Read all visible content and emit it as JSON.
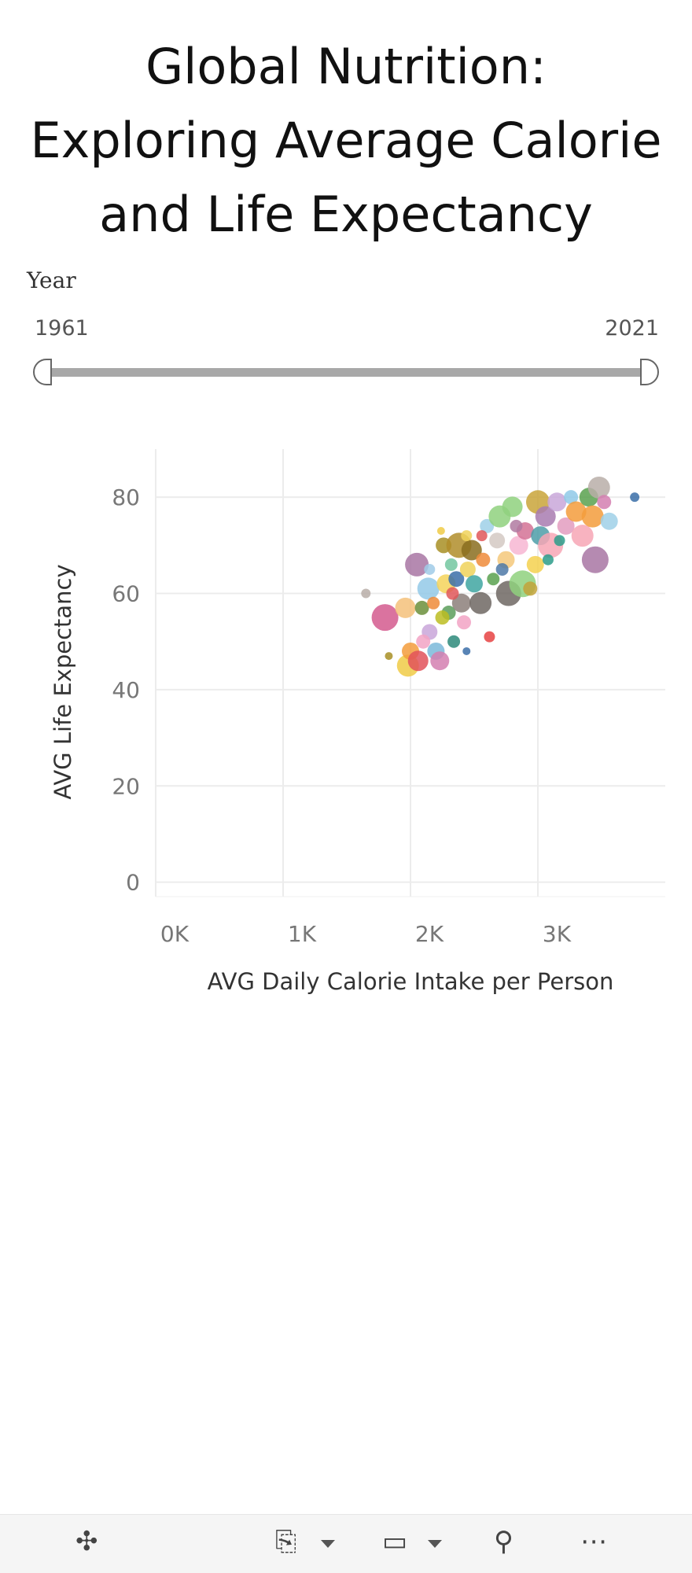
{
  "title_lines": [
    "Global Nutrition:",
    "Exploring Average Calorie",
    "and Life Expectancy"
  ],
  "filter": {
    "label": "Year",
    "min_value": "1961",
    "max_value": "2021",
    "selected_range": [
      1961,
      2021
    ]
  },
  "toolbar": {
    "icons": [
      "tableau-logo-icon",
      "download-icon",
      "device-layout-icon",
      "share-icon",
      "more-icon"
    ]
  },
  "chart_data": {
    "type": "scatter",
    "xlabel": "AVG Daily Calorie Intake per Person",
    "ylabel": "AVG Life Expectancy",
    "xlim": [
      0,
      4000
    ],
    "ylim": [
      -3,
      90
    ],
    "x_ticks": [
      {
        "value": 0,
        "label": "0K"
      },
      {
        "value": 1000,
        "label": "1K"
      },
      {
        "value": 2000,
        "label": "2K"
      },
      {
        "value": 3000,
        "label": "3K"
      }
    ],
    "y_ticks": [
      {
        "value": 0,
        "label": "0"
      },
      {
        "value": 20,
        "label": "20"
      },
      {
        "value": 40,
        "label": "40"
      },
      {
        "value": 60,
        "label": "60"
      },
      {
        "value": 80,
        "label": "80"
      }
    ],
    "grid": true,
    "points": [
      {
        "x": 1650,
        "y": 60,
        "size": 6,
        "color": "#b9aea8"
      },
      {
        "x": 1800,
        "y": 55,
        "size": 17,
        "color": "#d35a8e"
      },
      {
        "x": 1830,
        "y": 47,
        "size": 5,
        "color": "#a88f24"
      },
      {
        "x": 1960,
        "y": 57,
        "size": 13,
        "color": "#f5c17a"
      },
      {
        "x": 1980,
        "y": 45,
        "size": 14,
        "color": "#f0cb46"
      },
      {
        "x": 2000,
        "y": 48,
        "size": 11,
        "color": "#f39c3c"
      },
      {
        "x": 2060,
        "y": 46,
        "size": 13,
        "color": "#e2525b"
      },
      {
        "x": 2050,
        "y": 66,
        "size": 15,
        "color": "#a876a3"
      },
      {
        "x": 2090,
        "y": 57,
        "size": 9,
        "color": "#6b8f3b"
      },
      {
        "x": 2140,
        "y": 61,
        "size": 14,
        "color": "#93c9e8"
      },
      {
        "x": 2150,
        "y": 52,
        "size": 10,
        "color": "#c9a6d9"
      },
      {
        "x": 2200,
        "y": 48,
        "size": 11,
        "color": "#7ab8d9"
      },
      {
        "x": 2230,
        "y": 46,
        "size": 12,
        "color": "#d47fb0"
      },
      {
        "x": 2260,
        "y": 70,
        "size": 10,
        "color": "#a88f24"
      },
      {
        "x": 2280,
        "y": 62,
        "size": 12,
        "color": "#f5d45a"
      },
      {
        "x": 2300,
        "y": 56,
        "size": 9,
        "color": "#5a9d5a"
      },
      {
        "x": 2320,
        "y": 66,
        "size": 8,
        "color": "#73c7a0"
      },
      {
        "x": 2340,
        "y": 50,
        "size": 8,
        "color": "#2d8a7a"
      },
      {
        "x": 2360,
        "y": 63,
        "size": 10,
        "color": "#3b6ea8"
      },
      {
        "x": 2380,
        "y": 70,
        "size": 16,
        "color": "#b08d2a"
      },
      {
        "x": 2400,
        "y": 58,
        "size": 12,
        "color": "#8c7f7a"
      },
      {
        "x": 2420,
        "y": 54,
        "size": 9,
        "color": "#f2a3c4"
      },
      {
        "x": 2450,
        "y": 65,
        "size": 10,
        "color": "#f0d25a"
      },
      {
        "x": 2480,
        "y": 69,
        "size": 13,
        "color": "#8a6d1e"
      },
      {
        "x": 2500,
        "y": 62,
        "size": 11,
        "color": "#3fa6a1"
      },
      {
        "x": 2550,
        "y": 58,
        "size": 14,
        "color": "#6f6763"
      },
      {
        "x": 2570,
        "y": 67,
        "size": 9,
        "color": "#ef8b3a"
      },
      {
        "x": 2600,
        "y": 74,
        "size": 9,
        "color": "#9fd0e8"
      },
      {
        "x": 2620,
        "y": 51,
        "size": 7,
        "color": "#e64242"
      },
      {
        "x": 2650,
        "y": 63,
        "size": 8,
        "color": "#59a14f"
      },
      {
        "x": 2680,
        "y": 71,
        "size": 10,
        "color": "#d4c9c3"
      },
      {
        "x": 2700,
        "y": 76,
        "size": 14,
        "color": "#8fd17e"
      },
      {
        "x": 2750,
        "y": 67,
        "size": 11,
        "color": "#f5c87a"
      },
      {
        "x": 2770,
        "y": 60,
        "size": 16,
        "color": "#6f6763"
      },
      {
        "x": 2800,
        "y": 78,
        "size": 13,
        "color": "#8fd17e"
      },
      {
        "x": 2850,
        "y": 70,
        "size": 12,
        "color": "#f7b6d2"
      },
      {
        "x": 2880,
        "y": 62,
        "size": 17,
        "color": "#8fd17e"
      },
      {
        "x": 2900,
        "y": 73,
        "size": 11,
        "color": "#d37295"
      },
      {
        "x": 2940,
        "y": 61,
        "size": 9,
        "color": "#c2a33a"
      },
      {
        "x": 2980,
        "y": 66,
        "size": 11,
        "color": "#f5d14f"
      },
      {
        "x": 3000,
        "y": 79,
        "size": 15,
        "color": "#c9a53a"
      },
      {
        "x": 3020,
        "y": 72,
        "size": 12,
        "color": "#4e9ea8"
      },
      {
        "x": 3060,
        "y": 76,
        "size": 13,
        "color": "#a87bb0"
      },
      {
        "x": 3100,
        "y": 70,
        "size": 16,
        "color": "#f7a6b5"
      },
      {
        "x": 3150,
        "y": 79,
        "size": 12,
        "color": "#c9a7d9"
      },
      {
        "x": 3170,
        "y": 71,
        "size": 7,
        "color": "#2d9c8a"
      },
      {
        "x": 3220,
        "y": 74,
        "size": 11,
        "color": "#e39cc0"
      },
      {
        "x": 3260,
        "y": 80,
        "size": 9,
        "color": "#8fc9e8"
      },
      {
        "x": 3300,
        "y": 77,
        "size": 13,
        "color": "#f39c3c"
      },
      {
        "x": 3350,
        "y": 72,
        "size": 14,
        "color": "#f7a6b5"
      },
      {
        "x": 3400,
        "y": 80,
        "size": 12,
        "color": "#59a14f"
      },
      {
        "x": 3430,
        "y": 76,
        "size": 14,
        "color": "#f39c3c"
      },
      {
        "x": 3450,
        "y": 67,
        "size": 17,
        "color": "#a876a3"
      },
      {
        "x": 3480,
        "y": 82,
        "size": 14,
        "color": "#b9aea8"
      },
      {
        "x": 3520,
        "y": 79,
        "size": 9,
        "color": "#d47fb0"
      },
      {
        "x": 3560,
        "y": 75,
        "size": 11,
        "color": "#9fd0e8"
      },
      {
        "x": 3760,
        "y": 80,
        "size": 6,
        "color": "#3b6ea8"
      },
      {
        "x": 2100,
        "y": 50,
        "size": 9,
        "color": "#f2a3c4"
      },
      {
        "x": 2180,
        "y": 58,
        "size": 8,
        "color": "#ef8b3a"
      },
      {
        "x": 2250,
        "y": 55,
        "size": 9,
        "color": "#bcbd22"
      },
      {
        "x": 2330,
        "y": 60,
        "size": 8,
        "color": "#e15759"
      },
      {
        "x": 2440,
        "y": 72,
        "size": 7,
        "color": "#f0d25a"
      },
      {
        "x": 2560,
        "y": 72,
        "size": 7,
        "color": "#e15759"
      },
      {
        "x": 2720,
        "y": 65,
        "size": 8,
        "color": "#4e79a7"
      },
      {
        "x": 2830,
        "y": 74,
        "size": 8,
        "color": "#b07aa1"
      },
      {
        "x": 3080,
        "y": 67,
        "size": 7,
        "color": "#2d9c8a"
      },
      {
        "x": 2440,
        "y": 48,
        "size": 5,
        "color": "#3b6ea8"
      },
      {
        "x": 2240,
        "y": 73,
        "size": 5,
        "color": "#f0cb46"
      },
      {
        "x": 2150,
        "y": 65,
        "size": 7,
        "color": "#a0cbe8"
      }
    ]
  }
}
